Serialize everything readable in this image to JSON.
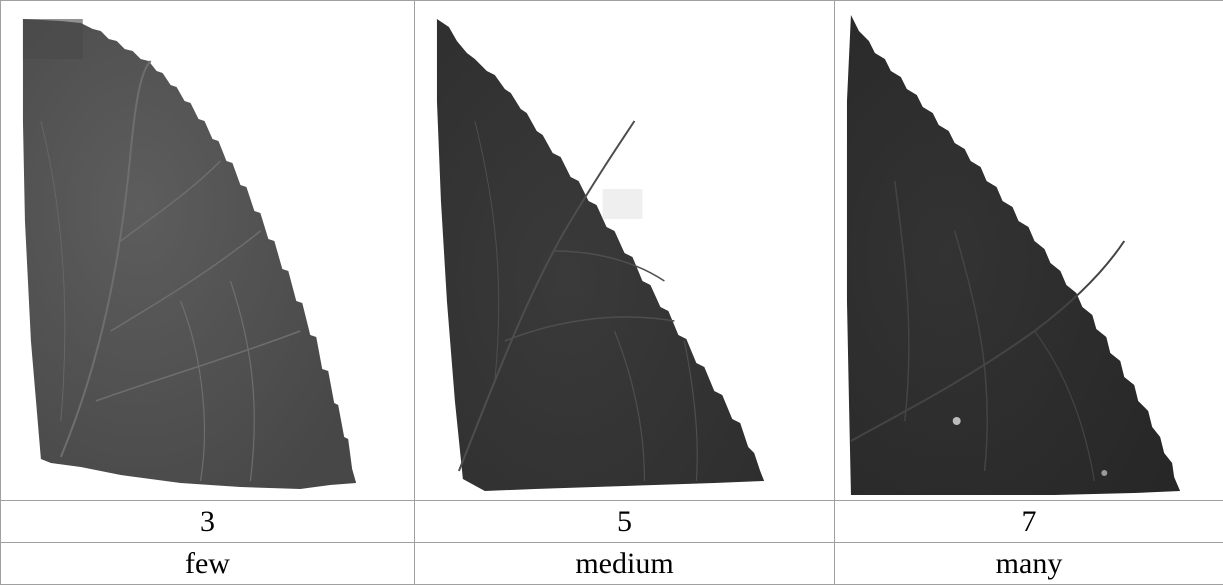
{
  "columns": [
    {
      "leaf_image": "leaf-edge-few-teeth",
      "tooth_score": "3",
      "tooth_category": "few"
    },
    {
      "leaf_image": "leaf-edge-medium-teeth",
      "tooth_score": "5",
      "tooth_category": "medium"
    },
    {
      "leaf_image": "leaf-edge-many-teeth",
      "tooth_score": "7",
      "tooth_category": "many"
    }
  ],
  "colors": {
    "leaf_fill_light": "#5a5a5a",
    "leaf_fill_mid": "#3d3d3d",
    "leaf_fill_dark": "#2c2c2c",
    "vein": "#7a7a7a",
    "grid_line": "#a0a0a0"
  }
}
